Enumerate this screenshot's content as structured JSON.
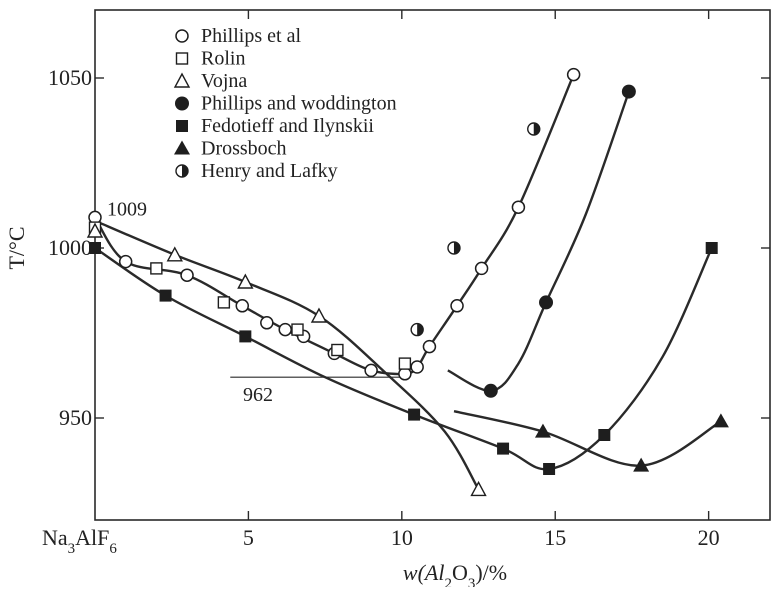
{
  "chart_data": {
    "type": "scatter",
    "xlabel": "w(Al2O3)/%",
    "xlabel_parts": [
      "w(Al",
      "2",
      "O",
      "3",
      ")/%"
    ],
    "ylabel": "T/°C",
    "xlim": [
      0,
      22
    ],
    "ylim": [
      920,
      1070
    ],
    "x_ticks": [
      {
        "value": 0,
        "label_parts": [
          "Na",
          "3",
          "AlF",
          "6"
        ]
      },
      {
        "value": 5,
        "label": "5"
      },
      {
        "value": 10,
        "label": "10"
      },
      {
        "value": 15,
        "label": "15"
      },
      {
        "value": 20,
        "label": "20"
      }
    ],
    "y_ticks": [
      {
        "value": 950,
        "label": "950"
      },
      {
        "value": 1000,
        "label": "1000"
      },
      {
        "value": 1050,
        "label": "1050"
      }
    ],
    "grid": false,
    "legend_position": "top-center",
    "series": [
      {
        "name": "Phillips et al",
        "marker": "circle-open",
        "points": [
          [
            0,
            1009
          ],
          [
            1,
            996
          ],
          [
            3,
            992
          ],
          [
            4.8,
            983
          ],
          [
            5.6,
            978
          ],
          [
            6.2,
            976
          ],
          [
            6.8,
            974
          ],
          [
            7.8,
            969
          ],
          [
            9,
            964
          ],
          [
            10.1,
            963
          ],
          [
            10.5,
            965
          ],
          [
            10.9,
            971
          ],
          [
            11.8,
            983
          ],
          [
            12.6,
            994
          ],
          [
            13.8,
            1012
          ],
          [
            15.6,
            1051
          ]
        ],
        "curve": [
          [
            0,
            1009
          ],
          [
            1,
            996
          ],
          [
            3,
            992
          ],
          [
            4.8,
            983
          ],
          [
            6.2,
            976
          ],
          [
            7.8,
            969
          ],
          [
            9,
            964
          ],
          [
            10.1,
            963
          ],
          [
            10.5,
            965
          ],
          [
            10.9,
            971
          ],
          [
            11.8,
            983
          ],
          [
            12.6,
            994
          ],
          [
            13.8,
            1012
          ],
          [
            15.6,
            1051
          ]
        ]
      },
      {
        "name": "Rolin",
        "marker": "square-open",
        "points": [
          [
            0,
            1006
          ],
          [
            2,
            994
          ],
          [
            4.2,
            984
          ],
          [
            6.6,
            976
          ],
          [
            7.9,
            970
          ],
          [
            10.1,
            966
          ]
        ]
      },
      {
        "name": "Vojna",
        "marker": "triangle-open",
        "points": [
          [
            0,
            1005
          ],
          [
            2.6,
            998
          ],
          [
            4.9,
            990
          ],
          [
            7.3,
            980
          ],
          [
            12.5,
            929
          ]
        ],
        "curve": [
          [
            0,
            1008
          ],
          [
            2.6,
            998
          ],
          [
            4.9,
            990
          ],
          [
            7.3,
            980
          ],
          [
            9.5,
            963
          ],
          [
            11.4,
            946
          ],
          [
            12.5,
            929
          ]
        ]
      },
      {
        "name": "Phillips and woddington",
        "marker": "circle-filled",
        "points": [
          [
            12.9,
            958
          ],
          [
            14.7,
            984
          ],
          [
            17.4,
            1046
          ]
        ],
        "curve": [
          [
            11.5,
            964
          ],
          [
            12.9,
            958
          ],
          [
            13.8,
            966
          ],
          [
            14.7,
            984
          ],
          [
            16,
            1010
          ],
          [
            17.4,
            1046
          ]
        ]
      },
      {
        "name": "Fedotieff and Ilynskii",
        "marker": "square-filled",
        "points": [
          [
            0,
            1000
          ],
          [
            2.3,
            986
          ],
          [
            4.9,
            974
          ],
          [
            10.4,
            951
          ],
          [
            13.3,
            941
          ],
          [
            14.8,
            935
          ],
          [
            16.6,
            945
          ],
          [
            20.1,
            1000
          ]
        ],
        "curve": [
          [
            0,
            1000
          ],
          [
            2.3,
            986
          ],
          [
            4.9,
            974
          ],
          [
            7.5,
            962
          ],
          [
            10.4,
            951
          ],
          [
            13.3,
            941
          ],
          [
            14.8,
            935
          ],
          [
            16.6,
            945
          ],
          [
            18.5,
            968
          ],
          [
            20.1,
            1000
          ]
        ]
      },
      {
        "name": "Drossboch",
        "marker": "triangle-filled",
        "points": [
          [
            14.6,
            946
          ],
          [
            17.8,
            936
          ],
          [
            20.4,
            949
          ]
        ],
        "curve": [
          [
            11.7,
            952
          ],
          [
            14.6,
            946
          ],
          [
            17.8,
            936
          ],
          [
            20.4,
            949
          ]
        ]
      },
      {
        "name": "Henry and Lafky",
        "marker": "circle-half",
        "points": [
          [
            10.5,
            976
          ],
          [
            11.7,
            1000
          ],
          [
            14.3,
            1035
          ]
        ]
      }
    ],
    "annotations": [
      {
        "text": "1009",
        "x": 0,
        "y": 1009
      },
      {
        "text": "962",
        "x": 9.6,
        "y": 962
      }
    ],
    "reference_line": {
      "y": 962,
      "x_from": 4.8,
      "x_to": 10.1
    }
  }
}
